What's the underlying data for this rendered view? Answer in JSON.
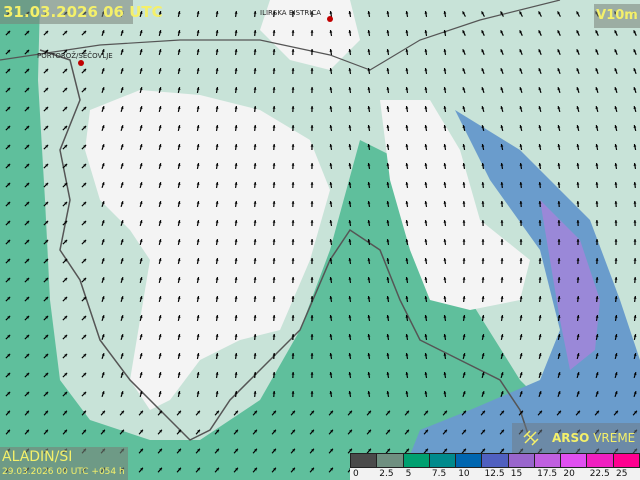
{
  "header": {
    "valid_time": "31.03.2026 06 UTC",
    "variable": "V10m"
  },
  "model": {
    "name": "ALADIN/SI",
    "run": "29.03.2026 00 UTC +054 h"
  },
  "cities": [
    {
      "name": "ILIRSKA BISTRICA"
    },
    {
      "name": "PORTOROŽ/SEČOVLJE"
    }
  ],
  "brand": {
    "part1": "ARSO",
    "part2": " VREME",
    "icon": "satellite-icon"
  },
  "legend": {
    "labels": [
      "0",
      "2.5",
      "5",
      "7.5",
      "10",
      "12.5",
      "15",
      "17.5",
      "20",
      "22.5",
      "25"
    ],
    "colors": [
      "#4a4a4a",
      "#6f8f80",
      "#00a070",
      "#008a8c",
      "#0066b0",
      "#5060c0",
      "#9966cc",
      "#c060e0",
      "#e050f0",
      "#f020c0",
      "#ff0090"
    ]
  },
  "colors": {
    "sea_green": "#5fbf9c",
    "light": "#c8e3d8",
    "white": "#f4f4f4",
    "blue": "#6a9ccc",
    "purple": "#9a88d8",
    "label_yellow": "#f4f06a"
  }
}
